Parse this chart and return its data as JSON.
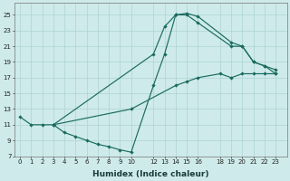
{
  "xlabel": "Humidex (Indice chaleur)",
  "bg_color": "#ceeaea",
  "line_color": "#1a6b60",
  "grid_color": "#aed4d4",
  "xlim": [
    -0.5,
    24
  ],
  "ylim": [
    7,
    26.5
  ],
  "xticks": [
    0,
    1,
    2,
    3,
    4,
    5,
    6,
    7,
    8,
    9,
    10,
    12,
    13,
    14,
    15,
    16,
    18,
    19,
    20,
    21,
    22,
    23
  ],
  "yticks": [
    7,
    9,
    11,
    13,
    15,
    17,
    19,
    21,
    23,
    25
  ],
  "line1_x": [
    0,
    1,
    2,
    3,
    12,
    13,
    14,
    15,
    16,
    19,
    20,
    21,
    22,
    23
  ],
  "line1_y": [
    12,
    11,
    11,
    11,
    20,
    23.5,
    25,
    25.2,
    24.8,
    21.5,
    21,
    19,
    18.5,
    18
  ],
  "line2_x": [
    3,
    10,
    14,
    15,
    16,
    18,
    19,
    20,
    21,
    22,
    23
  ],
  "line2_y": [
    11,
    13,
    16,
    16.5,
    17,
    17.5,
    17,
    17.5,
    17.5,
    17.5,
    17.5
  ],
  "line3_x": [
    3,
    4,
    5,
    6,
    7,
    8,
    9,
    10,
    12,
    13,
    14,
    15,
    16,
    19,
    20,
    21,
    22,
    23
  ],
  "line3_y": [
    11,
    10,
    9.5,
    9,
    8.5,
    8.2,
    7.8,
    7.5,
    16,
    20,
    25,
    25,
    24,
    21,
    21,
    19,
    18.5,
    17.5
  ]
}
